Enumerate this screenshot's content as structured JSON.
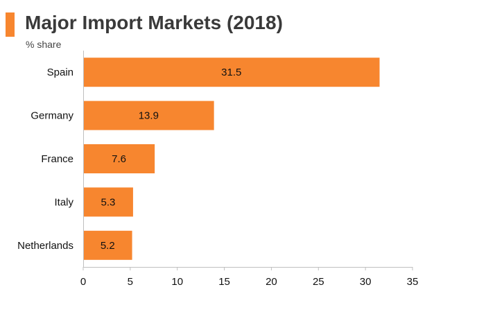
{
  "header": {
    "title": "Major Import Markets (2018)",
    "subtitle": "% share"
  },
  "colors": {
    "accent": "#f7862f",
    "bar": "#f7862f",
    "axis": "#bfbfbf",
    "text": "#111111"
  },
  "chart_data": {
    "type": "bar",
    "orientation": "horizontal",
    "title": "Major Import Markets (2018)",
    "subtitle": "% share",
    "categories": [
      "Spain",
      "Germany",
      "France",
      "Italy",
      "Netherlands"
    ],
    "values": [
      31.5,
      13.9,
      7.6,
      5.3,
      5.2
    ],
    "data_labels": [
      "31.5",
      "13.9",
      "7.6",
      "5.3",
      "5.2"
    ],
    "xlim": [
      0,
      35
    ],
    "xticks": [
      0,
      5,
      10,
      15,
      20,
      25,
      30,
      35
    ],
    "xlabel": "",
    "ylabel": "",
    "grid": false,
    "legend": "none"
  }
}
